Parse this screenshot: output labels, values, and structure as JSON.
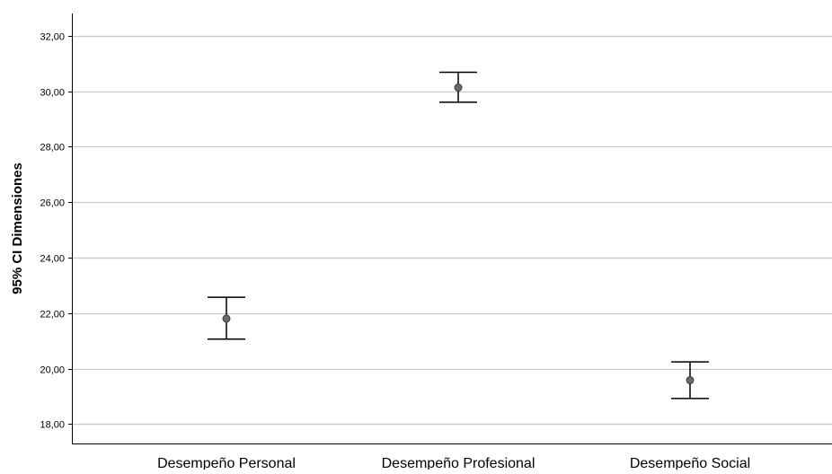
{
  "chart_data": {
    "type": "errorbar",
    "title": "",
    "xlabel": "",
    "ylabel": "95% CI Dimensiones",
    "ylim": [
      17.3,
      32.8
    ],
    "yticks": [
      18,
      20,
      22,
      24,
      26,
      28,
      30,
      32
    ],
    "ytick_labels": [
      "18,00",
      "20,00",
      "22,00",
      "24,00",
      "26,00",
      "28,00",
      "30,00",
      "32,00"
    ],
    "grid": true,
    "categories": [
      "Desempeño Personal",
      "Desempeño Profesional",
      "Desempeño Social"
    ],
    "means": [
      21.8,
      30.13,
      19.58
    ],
    "ci_lower": [
      21.06,
      29.6,
      18.92
    ],
    "ci_upper": [
      22.57,
      30.68,
      20.24
    ],
    "colors": {
      "grid": "#c8c8c8",
      "axis": "#000000",
      "marker_fill": "#696969",
      "marker_stroke": "#3c3c3c",
      "errorbar": "#000000"
    }
  }
}
